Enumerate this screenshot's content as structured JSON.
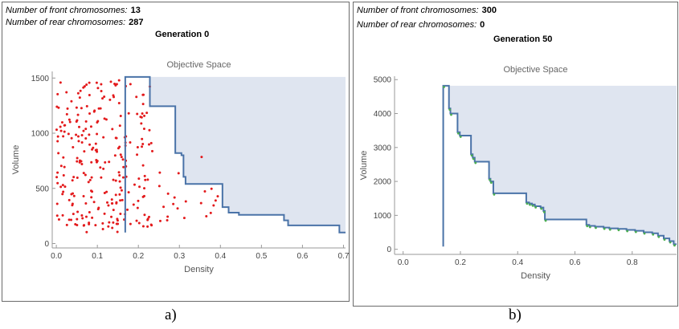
{
  "panels": [
    {
      "id": "a",
      "front_label": "Number of front chromosomes:",
      "front_value": "13",
      "rear_label": "Number of rear chromosomes:",
      "rear_value": "287",
      "generation": "Generation 0",
      "caption": "a)"
    },
    {
      "id": "b",
      "front_label": "Number of front chromosomes:",
      "front_value": "300",
      "rear_label": "Number of rear chromosomes:",
      "rear_value": "0",
      "generation": "Generation 50",
      "caption": "b)"
    }
  ],
  "colors": {
    "front_line": "#4a73a8",
    "dominated_fill": "#dfe5f0",
    "rear_points": "#e31a1c",
    "front_points": "#4caf50",
    "axis": "#999999",
    "title": "#666666"
  },
  "chart_data": [
    {
      "type": "scatter",
      "title": "Objective Space",
      "xlabel": "Density",
      "ylabel": "Volume",
      "xlim": [
        -0.01,
        0.705
      ],
      "ylim": [
        -40,
        1560
      ],
      "xticks": [
        "0.0",
        "0.1",
        "0.2",
        "0.3",
        "0.4",
        "0.5",
        "0.6",
        "0.7"
      ],
      "xtick_values": [
        0.0,
        0.1,
        0.2,
        0.3,
        0.4,
        0.5,
        0.6,
        0.7
      ],
      "yticks": [
        "0",
        "500",
        "1000",
        "1500"
      ],
      "ytick_values": [
        0,
        500,
        1000,
        1500
      ],
      "grid": false,
      "front_step": [
        [
          0.168,
          100
        ],
        [
          0.168,
          1510
        ],
        [
          0.228,
          1510
        ],
        [
          0.228,
          1245
        ],
        [
          0.29,
          1245
        ],
        [
          0.29,
          820
        ],
        [
          0.305,
          820
        ],
        [
          0.305,
          800
        ],
        [
          0.31,
          800
        ],
        [
          0.31,
          605
        ],
        [
          0.315,
          605
        ],
        [
          0.315,
          540
        ],
        [
          0.405,
          540
        ],
        [
          0.405,
          330
        ],
        [
          0.42,
          330
        ],
        [
          0.42,
          280
        ],
        [
          0.445,
          280
        ],
        [
          0.445,
          260
        ],
        [
          0.555,
          260
        ],
        [
          0.555,
          210
        ],
        [
          0.565,
          210
        ],
        [
          0.565,
          165
        ],
        [
          0.69,
          165
        ],
        [
          0.69,
          100
        ],
        [
          0.705,
          100
        ]
      ],
      "dominated_region_top": 1510,
      "rear_points": {
        "count": 287,
        "clusters": [
          {
            "x_range": [
              0.0,
              0.16
            ],
            "y_range": [
              100,
              1480
            ],
            "n": 200
          },
          {
            "x_range": [
              0.16,
              0.235
            ],
            "y_range": [
              150,
              1450
            ],
            "n": 65
          },
          {
            "x_range": [
              0.25,
              0.4
            ],
            "y_range": [
              200,
              800
            ],
            "n": 22
          }
        ]
      }
    },
    {
      "type": "line",
      "title": "Objective Space",
      "xlabel": "Density",
      "ylabel": "Volume",
      "xlim": [
        -0.03,
        0.955
      ],
      "ylim": [
        -150,
        5100
      ],
      "xticks": [
        "0.0",
        "0.2",
        "0.4",
        "0.6",
        "0.8"
      ],
      "xtick_values": [
        0.0,
        0.2,
        0.4,
        0.6,
        0.8
      ],
      "yticks": [
        "0",
        "1000",
        "2000",
        "3000",
        "4000",
        "5000"
      ],
      "ytick_values": [
        0,
        1000,
        2000,
        3000,
        4000,
        5000
      ],
      "grid": false,
      "front_step": [
        [
          0.14,
          80
        ],
        [
          0.14,
          4820
        ],
        [
          0.16,
          4820
        ],
        [
          0.16,
          4150
        ],
        [
          0.165,
          4150
        ],
        [
          0.165,
          4000
        ],
        [
          0.19,
          4000
        ],
        [
          0.19,
          3450
        ],
        [
          0.198,
          3450
        ],
        [
          0.198,
          3350
        ],
        [
          0.237,
          3350
        ],
        [
          0.237,
          2800
        ],
        [
          0.243,
          2800
        ],
        [
          0.243,
          2700
        ],
        [
          0.25,
          2700
        ],
        [
          0.25,
          2580
        ],
        [
          0.3,
          2580
        ],
        [
          0.3,
          2080
        ],
        [
          0.305,
          2080
        ],
        [
          0.305,
          2000
        ],
        [
          0.315,
          2000
        ],
        [
          0.315,
          1650
        ],
        [
          0.43,
          1650
        ],
        [
          0.43,
          1380
        ],
        [
          0.44,
          1380
        ],
        [
          0.44,
          1350
        ],
        [
          0.45,
          1350
        ],
        [
          0.45,
          1320
        ],
        [
          0.46,
          1320
        ],
        [
          0.46,
          1270
        ],
        [
          0.48,
          1270
        ],
        [
          0.48,
          1230
        ],
        [
          0.49,
          1230
        ],
        [
          0.49,
          1130
        ],
        [
          0.495,
          1130
        ],
        [
          0.495,
          880
        ],
        [
          0.64,
          880
        ],
        [
          0.64,
          720
        ],
        [
          0.65,
          720
        ],
        [
          0.65,
          690
        ],
        [
          0.67,
          690
        ],
        [
          0.67,
          665
        ],
        [
          0.7,
          665
        ],
        [
          0.7,
          640
        ],
        [
          0.72,
          640
        ],
        [
          0.72,
          615
        ],
        [
          0.75,
          615
        ],
        [
          0.75,
          600
        ],
        [
          0.78,
          600
        ],
        [
          0.78,
          570
        ],
        [
          0.81,
          570
        ],
        [
          0.81,
          545
        ],
        [
          0.84,
          545
        ],
        [
          0.84,
          500
        ],
        [
          0.87,
          500
        ],
        [
          0.87,
          470
        ],
        [
          0.89,
          470
        ],
        [
          0.89,
          400
        ],
        [
          0.91,
          400
        ],
        [
          0.91,
          320
        ],
        [
          0.93,
          320
        ],
        [
          0.93,
          240
        ],
        [
          0.945,
          240
        ],
        [
          0.945,
          150
        ],
        [
          0.955,
          150
        ]
      ],
      "dominated_region_top": 4820
    }
  ]
}
